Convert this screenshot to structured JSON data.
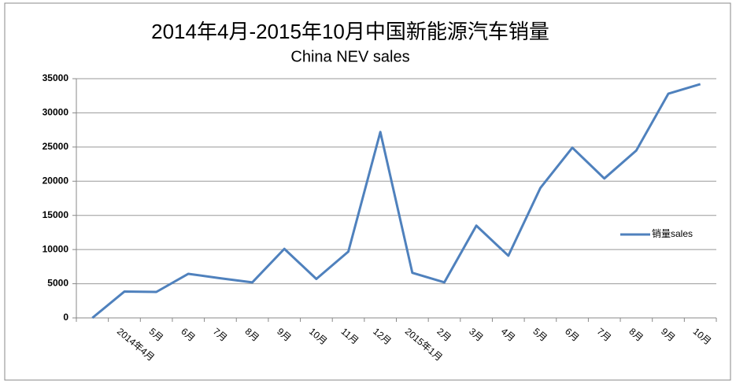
{
  "chart_data": {
    "type": "line",
    "title": "2014年4月-2015年10月中国新能源汽车销量",
    "subtitle": "China NEV sales",
    "categories": [
      null,
      "2014年4月",
      "5月",
      "6月",
      "7月",
      "8月",
      "9月",
      "10月",
      "11月",
      "12月",
      "2015年1月",
      "2月",
      "3月",
      "4月",
      "5月",
      "6月",
      "7月",
      "8月",
      "9月",
      "10月"
    ],
    "series": [
      {
        "name": "销量sales",
        "color": "#4f81bd",
        "values": [
          0,
          3850,
          3800,
          6450,
          5800,
          5200,
          10100,
          5700,
          9700,
          27200,
          6600,
          5200,
          13500,
          9100,
          19000,
          24900,
          20400,
          24500,
          32800,
          34200
        ]
      }
    ],
    "ylim": [
      0,
      35000
    ],
    "yticks": [
      0,
      5000,
      10000,
      15000,
      20000,
      25000,
      30000,
      35000
    ],
    "grid": true,
    "legend": "right"
  }
}
